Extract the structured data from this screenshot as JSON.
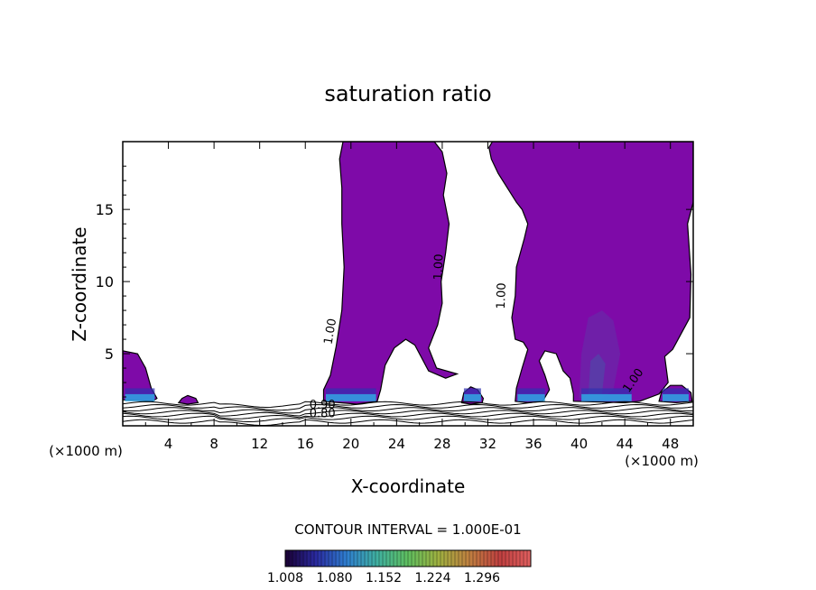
{
  "chart_data": {
    "type": "heatmap",
    "title": "saturation ratio",
    "xlabel": "X-coordinate",
    "ylabel": "Z-coordinate",
    "x_unit_left": "(×1000 m)",
    "x_unit_right": "(×1000 m)",
    "xlim": [
      0,
      50
    ],
    "ylim": [
      0,
      19.7
    ],
    "x_ticks": [
      4,
      8,
      12,
      16,
      20,
      24,
      28,
      32,
      36,
      40,
      44,
      48
    ],
    "y_ticks": [
      5,
      10,
      15
    ],
    "contour_interval_text": "CONTOUR INTERVAL = 1.000E-01",
    "colorbar": {
      "labels": [
        "1.008",
        "1.080",
        "1.152",
        "1.224",
        "1.296"
      ],
      "colors": [
        "#1a0033",
        "#2a2aa0",
        "#2f7fd0",
        "#40b0a0",
        "#5fbf5f",
        "#a0b040",
        "#c08040",
        "#c04040",
        "#e06060"
      ]
    },
    "contour_labels": [
      {
        "text": "1.00",
        "x": 18.5,
        "z": 6.5,
        "angle": -80
      },
      {
        "text": "1.00",
        "x": 28.0,
        "z": 11.0,
        "angle": -88
      },
      {
        "text": "1.00",
        "x": 33.5,
        "z": 9.0,
        "angle": -88
      },
      {
        "text": "1.00",
        "x": 45.0,
        "z": 3.0,
        "angle": -55
      },
      {
        "text": "0.90",
        "x": 17.5,
        "z": 1.2,
        "angle": 0
      },
      {
        "text": "0.80",
        "x": 17.5,
        "z": 0.6,
        "angle": 0
      }
    ],
    "saturated_regions": [
      {
        "name": "left-edge",
        "value": 1.008,
        "outline": [
          [
            0,
            1.8
          ],
          [
            0,
            5.2
          ],
          [
            1.3,
            5.0
          ],
          [
            2.0,
            4.0
          ],
          [
            2.5,
            2.6
          ],
          [
            3.0,
            1.9
          ],
          [
            2.6,
            1.7
          ]
        ]
      },
      {
        "name": "column-1",
        "value": 1.008,
        "outline": [
          [
            17.6,
            1.7
          ],
          [
            17.6,
            2.5
          ],
          [
            18.2,
            3.5
          ],
          [
            18.7,
            5.5
          ],
          [
            19.2,
            8.0
          ],
          [
            19.4,
            11.0
          ],
          [
            19.2,
            14.0
          ],
          [
            19.2,
            16.5
          ],
          [
            19.0,
            18.5
          ],
          [
            19.3,
            19.7
          ],
          [
            27.3,
            19.7
          ],
          [
            28.0,
            19.0
          ],
          [
            28.4,
            17.5
          ],
          [
            28.1,
            16.0
          ],
          [
            28.6,
            14.0
          ],
          [
            28.3,
            12.0
          ],
          [
            27.9,
            10.0
          ],
          [
            28.0,
            8.5
          ],
          [
            27.6,
            7.0
          ],
          [
            27.2,
            6.2
          ],
          [
            26.8,
            5.4
          ],
          [
            27.5,
            4.0
          ],
          [
            29.3,
            3.6
          ],
          [
            28.3,
            3.3
          ],
          [
            26.8,
            3.8
          ],
          [
            25.6,
            5.6
          ],
          [
            24.8,
            6.0
          ],
          [
            23.8,
            5.4
          ],
          [
            23.0,
            4.2
          ],
          [
            22.6,
            2.5
          ],
          [
            22.3,
            1.7
          ],
          [
            20.5,
            1.5
          ]
        ]
      },
      {
        "name": "column-2",
        "value": 1.008,
        "outline": [
          [
            34.4,
            1.7
          ],
          [
            34.5,
            2.6
          ],
          [
            35.0,
            4.0
          ],
          [
            35.5,
            5.3
          ],
          [
            35.1,
            5.8
          ],
          [
            34.4,
            6.0
          ],
          [
            34.1,
            7.5
          ],
          [
            34.4,
            9.0
          ],
          [
            34.5,
            11.0
          ],
          [
            35.2,
            13.0
          ],
          [
            35.5,
            14.0
          ],
          [
            35.0,
            15.0
          ],
          [
            34.5,
            15.5
          ],
          [
            33.7,
            16.5
          ],
          [
            32.9,
            17.5
          ],
          [
            32.3,
            18.5
          ],
          [
            32.1,
            19.3
          ],
          [
            32.4,
            19.7
          ],
          [
            50,
            19.7
          ],
          [
            50,
            15.5
          ],
          [
            49.5,
            14.0
          ],
          [
            49.8,
            10.5
          ],
          [
            49.7,
            7.5
          ],
          [
            48.2,
            5.3
          ],
          [
            47.5,
            4.8
          ],
          [
            47.8,
            3.0
          ],
          [
            47.0,
            2.2
          ],
          [
            45.3,
            1.7
          ],
          [
            44.0,
            1.6
          ],
          [
            39.5,
            1.7
          ],
          [
            39.5,
            2.2
          ],
          [
            39.2,
            3.3
          ],
          [
            38.6,
            3.8
          ],
          [
            38.0,
            5.0
          ],
          [
            37.0,
            5.2
          ],
          [
            36.5,
            4.5
          ],
          [
            37.0,
            3.5
          ],
          [
            37.4,
            2.5
          ],
          [
            36.8,
            1.7
          ],
          [
            35.5,
            1.6
          ]
        ]
      },
      {
        "name": "blob-6km",
        "value": 1.008,
        "outline": [
          [
            4.9,
            1.6
          ],
          [
            5.2,
            1.9
          ],
          [
            5.7,
            2.1
          ],
          [
            6.4,
            1.9
          ],
          [
            6.6,
            1.6
          ],
          [
            5.7,
            1.5
          ]
        ]
      },
      {
        "name": "blob-30km",
        "value": 1.008,
        "outline": [
          [
            29.7,
            1.6
          ],
          [
            29.9,
            2.3
          ],
          [
            30.5,
            2.7
          ],
          [
            31.1,
            2.5
          ],
          [
            31.6,
            1.9
          ],
          [
            31.5,
            1.6
          ],
          [
            30.5,
            1.5
          ]
        ]
      },
      {
        "name": "blob-48km",
        "value": 1.008,
        "outline": [
          [
            47.0,
            1.7
          ],
          [
            47.2,
            2.3
          ],
          [
            48.0,
            2.8
          ],
          [
            49.0,
            2.8
          ],
          [
            49.8,
            2.3
          ],
          [
            49.9,
            1.7
          ],
          [
            48.5,
            1.6
          ]
        ]
      }
    ],
    "enhanced_regions": [
      {
        "value": 1.08,
        "outline": [
          [
            40.0,
            1.9
          ],
          [
            40.2,
            5.0
          ],
          [
            40.8,
            7.5
          ],
          [
            42.0,
            8.0
          ],
          [
            43.0,
            7.3
          ],
          [
            43.6,
            5.0
          ],
          [
            43.0,
            2.5
          ],
          [
            42.0,
            1.9
          ]
        ]
      },
      {
        "value": 1.15,
        "outline": [
          [
            40.8,
            2.0
          ],
          [
            41.0,
            4.5
          ],
          [
            41.7,
            5.0
          ],
          [
            42.3,
            4.3
          ],
          [
            42.0,
            2.2
          ]
        ]
      }
    ],
    "boundary_isolines_z": [
      0.3,
      0.55,
      0.75,
      0.95,
      1.15,
      1.35,
      1.55
    ]
  }
}
